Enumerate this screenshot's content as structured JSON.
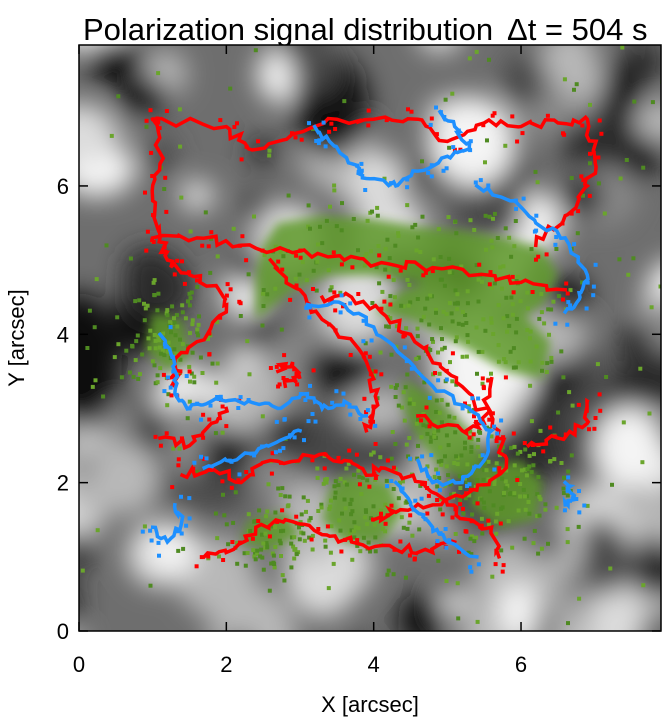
{
  "chart_data": {
    "type": "heatmap",
    "title": "Polarization signal distribution",
    "time_label": "Δt = 504 s",
    "xlabel": "X [arcsec]",
    "ylabel": "Y [arcsec]",
    "xlim": [
      0,
      7.9
    ],
    "ylim": [
      0,
      7.9
    ],
    "x_ticks": [
      0,
      2,
      4,
      6
    ],
    "y_ticks": [
      0,
      2,
      4,
      6
    ],
    "grid": false,
    "background": "grayscale continuum intensity map",
    "overlays": [
      {
        "color": "#ff0000",
        "kind": "contour"
      },
      {
        "color": "#1e90ff",
        "kind": "contour"
      },
      {
        "color": "#5f9a2a",
        "kind": "filled region"
      }
    ],
    "red_paths": [
      [
        [
          1.0,
          6.9
        ],
        [
          2.0,
          6.8
        ],
        [
          2.3,
          6.5
        ],
        [
          2.9,
          6.7
        ],
        [
          3.5,
          6.9
        ],
        [
          4.0,
          6.9
        ],
        [
          4.6,
          6.9
        ],
        [
          5.0,
          6.6
        ],
        [
          5.5,
          6.85
        ],
        [
          6.0,
          6.8
        ],
        [
          6.5,
          6.85
        ],
        [
          6.9,
          6.9
        ],
        [
          7.0,
          6.4
        ],
        [
          6.9,
          6.0
        ],
        [
          6.6,
          5.6
        ],
        [
          6.2,
          5.2
        ]
      ],
      [
        [
          1.0,
          6.9
        ],
        [
          1.1,
          6.3
        ],
        [
          1.0,
          5.8
        ],
        [
          1.1,
          5.3
        ],
        [
          1.2,
          5.0
        ],
        [
          1.5,
          4.8
        ],
        [
          1.9,
          4.6
        ],
        [
          2.0,
          4.3
        ],
        [
          1.6,
          3.9
        ],
        [
          1.3,
          3.6
        ],
        [
          1.3,
          3.3
        ]
      ],
      [
        [
          1.0,
          5.3
        ],
        [
          1.6,
          5.3
        ],
        [
          2.2,
          5.2
        ],
        [
          2.9,
          5.1
        ],
        [
          3.6,
          5.0
        ],
        [
          4.2,
          4.95
        ],
        [
          4.8,
          4.9
        ],
        [
          5.4,
          4.8
        ],
        [
          6.0,
          4.7
        ],
        [
          6.6,
          4.6
        ]
      ],
      [
        [
          2.6,
          5.0
        ],
        [
          3.0,
          4.6
        ],
        [
          3.3,
          4.2
        ],
        [
          3.8,
          3.8
        ],
        [
          4.0,
          3.4
        ],
        [
          4.0,
          3.0
        ],
        [
          3.9,
          2.7
        ]
      ],
      [
        [
          3.3,
          4.5
        ],
        [
          3.7,
          4.5
        ],
        [
          4.1,
          4.3
        ],
        [
          4.5,
          4.0
        ],
        [
          4.9,
          3.6
        ],
        [
          5.3,
          3.2
        ],
        [
          5.7,
          2.7
        ],
        [
          5.8,
          2.2
        ],
        [
          5.4,
          1.9
        ],
        [
          4.8,
          1.7
        ],
        [
          4.3,
          1.6
        ],
        [
          4.0,
          1.5
        ]
      ],
      [
        [
          1.4,
          2.1
        ],
        [
          1.8,
          2.2
        ],
        [
          2.2,
          2.0
        ],
        [
          2.6,
          2.3
        ],
        [
          3.2,
          2.35
        ],
        [
          3.6,
          2.3
        ],
        [
          3.9,
          2.1
        ],
        [
          4.1,
          2.2
        ],
        [
          4.7,
          2.0
        ],
        [
          5.0,
          1.7
        ],
        [
          5.3,
          1.5
        ],
        [
          5.6,
          1.4
        ],
        [
          5.7,
          1.0
        ]
      ],
      [
        [
          1.7,
          1.0
        ],
        [
          2.1,
          1.1
        ],
        [
          2.4,
          1.4
        ],
        [
          2.8,
          1.5
        ],
        [
          3.3,
          1.3
        ],
        [
          3.7,
          1.2
        ],
        [
          4.3,
          1.1
        ],
        [
          4.7,
          1.1
        ],
        [
          5.1,
          1.2
        ]
      ],
      [
        [
          1.1,
          2.6
        ],
        [
          1.5,
          2.5
        ],
        [
          1.8,
          2.8
        ],
        [
          2.0,
          3.0
        ]
      ],
      [
        [
          6.1,
          2.5
        ],
        [
          6.5,
          2.6
        ],
        [
          6.9,
          2.8
        ],
        [
          6.9,
          3.1
        ]
      ],
      [
        [
          4.6,
          2.9
        ],
        [
          5.2,
          2.7
        ],
        [
          5.5,
          2.8
        ],
        [
          5.6,
          3.4
        ]
      ],
      [
        [
          2.7,
          3.5
        ],
        [
          2.9,
          3.6
        ],
        [
          3.0,
          3.4
        ],
        [
          2.8,
          3.3
        ]
      ]
    ],
    "blue_paths": [
      [
        [
          3.2,
          6.8
        ],
        [
          3.4,
          6.6
        ],
        [
          3.7,
          6.3
        ],
        [
          3.9,
          6.1
        ],
        [
          4.3,
          6.0
        ],
        [
          4.6,
          6.2
        ],
        [
          5.0,
          6.4
        ],
        [
          5.3,
          6.5
        ],
        [
          5.1,
          6.8
        ],
        [
          4.9,
          7.0
        ]
      ],
      [
        [
          5.4,
          6.0
        ],
        [
          5.9,
          5.8
        ],
        [
          6.2,
          5.5
        ],
        [
          6.6,
          5.3
        ],
        [
          6.9,
          4.8
        ],
        [
          6.8,
          4.5
        ],
        [
          6.6,
          4.3
        ]
      ],
      [
        [
          3.1,
          4.4
        ],
        [
          3.6,
          4.4
        ],
        [
          4.0,
          4.1
        ],
        [
          4.4,
          3.7
        ],
        [
          4.8,
          3.3
        ],
        [
          5.3,
          3.0
        ],
        [
          5.6,
          2.7
        ],
        [
          5.5,
          2.3
        ],
        [
          5.2,
          2.0
        ],
        [
          4.8,
          2.0
        ],
        [
          4.6,
          2.3
        ]
      ],
      [
        [
          1.1,
          4.0
        ],
        [
          1.3,
          3.6
        ],
        [
          1.3,
          3.2
        ],
        [
          1.5,
          3.0
        ],
        [
          1.8,
          3.1
        ],
        [
          2.3,
          3.1
        ],
        [
          2.7,
          3.0
        ],
        [
          3.1,
          3.2
        ],
        [
          3.3,
          3.0
        ],
        [
          3.6,
          3.1
        ],
        [
          3.9,
          2.9
        ]
      ],
      [
        [
          1.7,
          2.2
        ],
        [
          2.0,
          2.3
        ],
        [
          2.4,
          2.4
        ],
        [
          2.8,
          2.6
        ],
        [
          3.0,
          2.7
        ]
      ],
      [
        [
          4.3,
          2.0
        ],
        [
          4.5,
          1.7
        ],
        [
          4.8,
          1.4
        ],
        [
          5.0,
          1.2
        ],
        [
          5.4,
          1.0
        ]
      ],
      [
        [
          1.0,
          1.4
        ],
        [
          1.2,
          1.2
        ],
        [
          1.4,
          1.5
        ],
        [
          1.3,
          1.7
        ]
      ],
      [
        [
          6.6,
          2.0
        ],
        [
          6.7,
          1.8
        ],
        [
          6.6,
          1.7
        ]
      ]
    ],
    "green_regions": [
      [
        [
          2.7,
          5.5
        ],
        [
          3.3,
          5.6
        ],
        [
          4.0,
          5.55
        ],
        [
          4.6,
          5.45
        ],
        [
          5.2,
          5.4
        ],
        [
          5.8,
          5.3
        ],
        [
          6.3,
          5.15
        ],
        [
          6.5,
          4.8
        ],
        [
          6.3,
          4.4
        ],
        [
          5.8,
          4.1
        ],
        [
          5.2,
          4.3
        ],
        [
          4.6,
          4.7
        ],
        [
          4.0,
          4.8
        ],
        [
          3.4,
          4.8
        ],
        [
          2.9,
          4.6
        ],
        [
          2.4,
          4.2
        ],
        [
          2.4,
          4.8
        ],
        [
          2.5,
          5.2
        ]
      ],
      [
        [
          4.0,
          4.3
        ],
        [
          4.5,
          4.2
        ],
        [
          5.1,
          3.9
        ],
        [
          5.8,
          3.5
        ],
        [
          6.3,
          3.4
        ],
        [
          6.4,
          3.9
        ],
        [
          6.0,
          4.3
        ],
        [
          5.5,
          4.6
        ],
        [
          5.0,
          4.75
        ],
        [
          4.4,
          4.6
        ]
      ],
      [
        [
          4.4,
          3.4
        ],
        [
          4.9,
          3.1
        ],
        [
          5.3,
          2.7
        ],
        [
          5.5,
          2.3
        ],
        [
          5.3,
          2.0
        ],
        [
          4.9,
          2.2
        ],
        [
          4.6,
          2.6
        ],
        [
          4.4,
          3.0
        ]
      ],
      [
        [
          3.6,
          2.1
        ],
        [
          4.2,
          2.0
        ],
        [
          4.4,
          1.6
        ],
        [
          4.1,
          1.2
        ],
        [
          3.6,
          1.2
        ],
        [
          3.3,
          1.5
        ],
        [
          3.4,
          1.9
        ]
      ],
      [
        [
          5.4,
          2.2
        ],
        [
          6.0,
          2.3
        ],
        [
          6.3,
          2.0
        ],
        [
          6.2,
          1.5
        ],
        [
          5.7,
          1.4
        ],
        [
          5.3,
          1.7
        ]
      ],
      [
        [
          2.3,
          1.5
        ],
        [
          2.8,
          1.6
        ],
        [
          3.0,
          1.3
        ],
        [
          2.6,
          1.1
        ],
        [
          2.2,
          1.2
        ]
      ],
      [
        [
          1.0,
          4.3
        ],
        [
          1.4,
          4.2
        ],
        [
          1.5,
          3.7
        ],
        [
          1.2,
          3.5
        ],
        [
          0.9,
          3.8
        ]
      ]
    ]
  }
}
